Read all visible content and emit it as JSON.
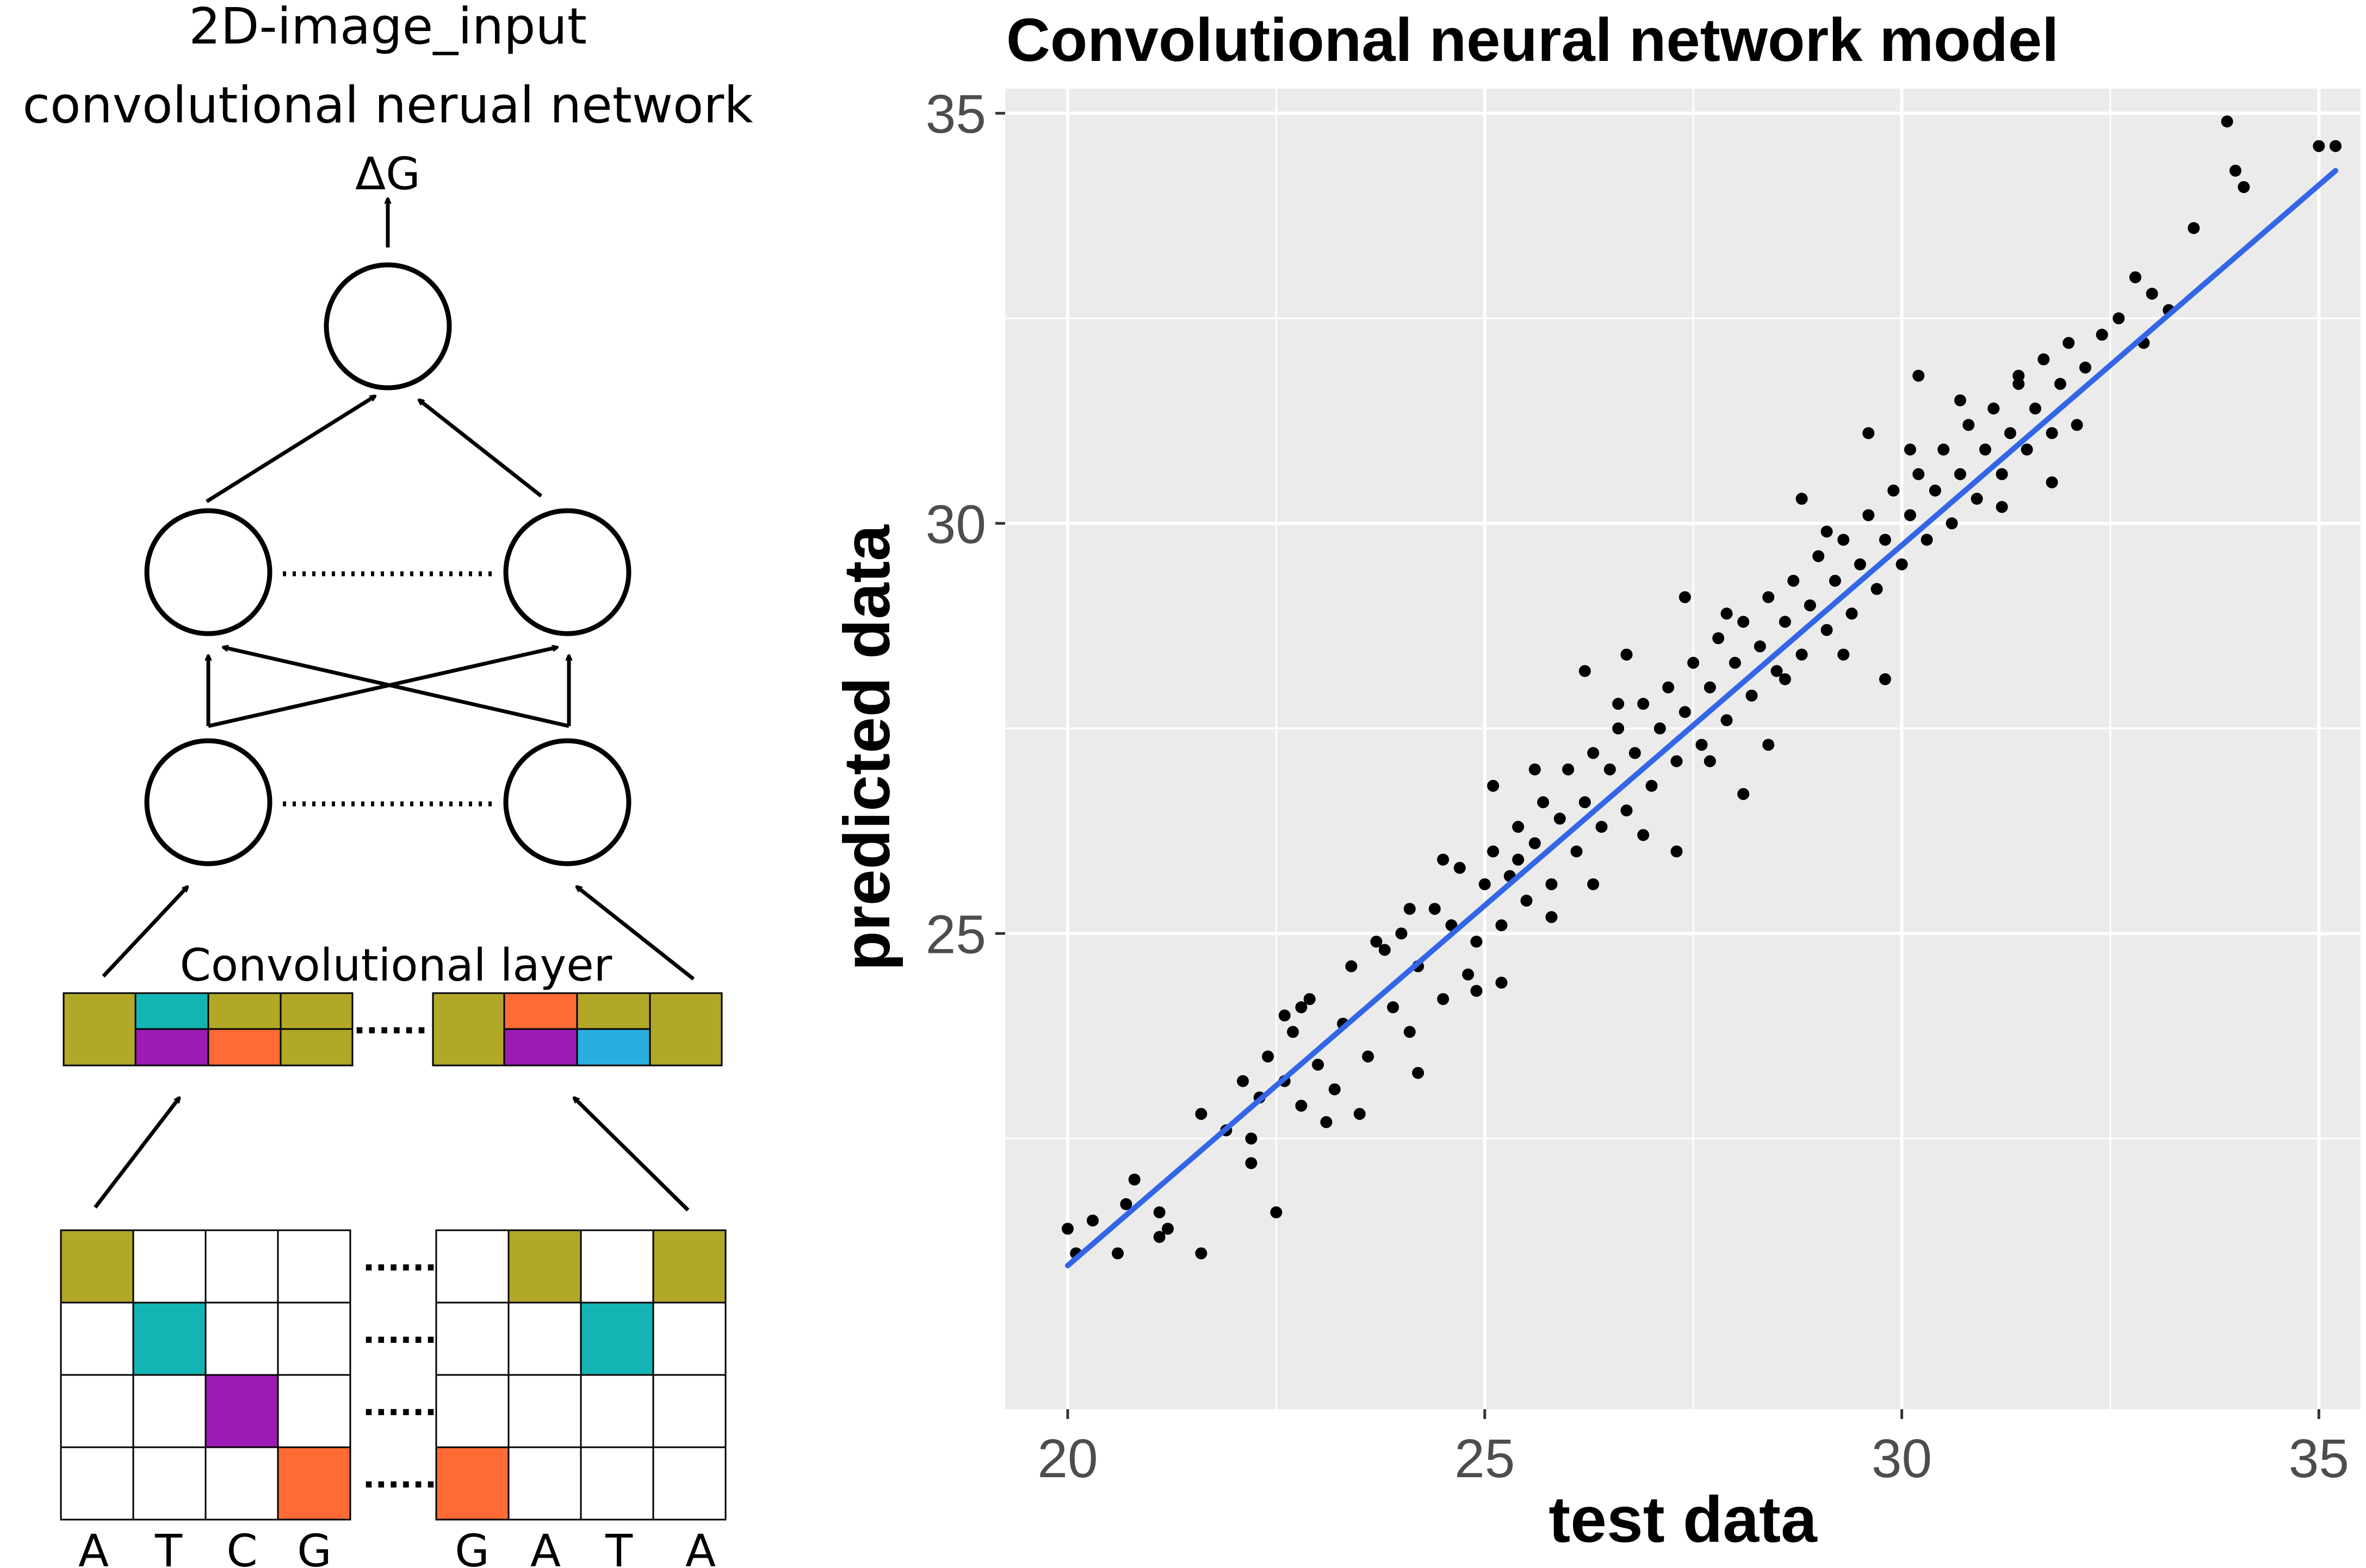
{
  "diagram": {
    "title_line1": "2D-image_input",
    "title_line2": "convolutional nerual network",
    "output_label": "ΔG",
    "conv_layer_label": "Convolutional layer",
    "colors": {
      "olive": "#B0A826",
      "teal": "#14B4B4",
      "purple": "#9B1BB4",
      "orange": "#FF6B35",
      "blue": "#2AAEE0"
    },
    "seq_left": [
      "A",
      "T",
      "C",
      "G"
    ],
    "seq_right": [
      "G",
      "A",
      "T",
      "A"
    ],
    "ellipsis": "......"
  },
  "chart_data": {
    "type": "scatter",
    "title": "Convolutional neural network model",
    "xlabel": "test data",
    "ylabel": "predicted data",
    "xlim": [
      19.25,
      35.5
    ],
    "ylim": [
      19.2,
      35.3
    ],
    "xticks": [
      20,
      25,
      30,
      35
    ],
    "yticks": [
      25,
      30,
      35
    ],
    "grid": true,
    "panel_color": "#EBEBEB",
    "point_color": "#000000",
    "fit_line": {
      "color": "#3366E6",
      "x": [
        20,
        35.2
      ],
      "y": [
        20.95,
        34.3
      ]
    },
    "points": [
      [
        20,
        21.4
      ],
      [
        20.1,
        21.1
      ],
      [
        20.6,
        21.1
      ],
      [
        20.7,
        21.7
      ],
      [
        20.8,
        22
      ],
      [
        21.1,
        21.6
      ],
      [
        21.2,
        21.4
      ],
      [
        21.6,
        21.1
      ],
      [
        21.6,
        22.8
      ],
      [
        21.9,
        22.6
      ],
      [
        22.1,
        23.2
      ],
      [
        22.2,
        22.5
      ],
      [
        22.2,
        22.2
      ],
      [
        22.3,
        23
      ],
      [
        22.4,
        23.5
      ],
      [
        22.5,
        21.6
      ],
      [
        22.6,
        23.2
      ],
      [
        22.7,
        23.8
      ],
      [
        22.8,
        22.9
      ],
      [
        22.9,
        24.2
      ],
      [
        23,
        23.4
      ],
      [
        23.1,
        22.7
      ],
      [
        23.3,
        23.9
      ],
      [
        23.4,
        24.6
      ],
      [
        23.6,
        23.5
      ],
      [
        23.8,
        24.8
      ],
      [
        23.9,
        24.1
      ],
      [
        24,
        25
      ],
      [
        24.1,
        23.8
      ],
      [
        24.2,
        24.6
      ],
      [
        24.4,
        25.3
      ],
      [
        24.5,
        24.2
      ],
      [
        24.6,
        25.1
      ],
      [
        24.7,
        25.8
      ],
      [
        24.8,
        24.5
      ],
      [
        24.9,
        24.9
      ],
      [
        25,
        25.6
      ],
      [
        25.1,
        26
      ],
      [
        25.2,
        25.1
      ],
      [
        25.3,
        25.7
      ],
      [
        25.4,
        26.3
      ],
      [
        25.5,
        25.4
      ],
      [
        25.6,
        26.1
      ],
      [
        25.7,
        26.6
      ],
      [
        25.8,
        25.6
      ],
      [
        25.9,
        26.4
      ],
      [
        26,
        27
      ],
      [
        26.1,
        26
      ],
      [
        26.2,
        26.6
      ],
      [
        26.3,
        27.2
      ],
      [
        26.4,
        26.3
      ],
      [
        26.5,
        27
      ],
      [
        26.6,
        27.5
      ],
      [
        26.7,
        26.5
      ],
      [
        26.8,
        27.2
      ],
      [
        26.9,
        27.8
      ],
      [
        27,
        26.8
      ],
      [
        27.1,
        27.5
      ],
      [
        27.2,
        28
      ],
      [
        27.3,
        27.1
      ],
      [
        27.4,
        27.7
      ],
      [
        27.5,
        28.3
      ],
      [
        27.6,
        27.3
      ],
      [
        27.7,
        28
      ],
      [
        27.8,
        28.6
      ],
      [
        27.9,
        27.6
      ],
      [
        28,
        28.3
      ],
      [
        28.1,
        28.8
      ],
      [
        28.2,
        27.9
      ],
      [
        28.3,
        28.5
      ],
      [
        28.4,
        29.1
      ],
      [
        28.5,
        28.2
      ],
      [
        28.6,
        28.8
      ],
      [
        28.7,
        29.3
      ],
      [
        28.8,
        28.4
      ],
      [
        28.9,
        29
      ],
      [
        29,
        29.6
      ],
      [
        29.1,
        28.7
      ],
      [
        29.2,
        29.3
      ],
      [
        29.3,
        29.8
      ],
      [
        29.4,
        28.9
      ],
      [
        29.5,
        29.5
      ],
      [
        29.6,
        30.1
      ],
      [
        29.7,
        29.2
      ],
      [
        29.8,
        29.8
      ],
      [
        29.9,
        30.4
      ],
      [
        30,
        29.5
      ],
      [
        30.1,
        30.1
      ],
      [
        30.2,
        30.6
      ],
      [
        30.3,
        29.8
      ],
      [
        30.4,
        30.4
      ],
      [
        30.5,
        30.9
      ],
      [
        30.6,
        30
      ],
      [
        30.7,
        30.6
      ],
      [
        30.8,
        31.2
      ],
      [
        30.9,
        30.3
      ],
      [
        31,
        30.9
      ],
      [
        31.1,
        31.4
      ],
      [
        31.2,
        30.6
      ],
      [
        31.3,
        31.1
      ],
      [
        31.4,
        31.7
      ],
      [
        31.5,
        30.9
      ],
      [
        31.6,
        31.4
      ],
      [
        31.7,
        32
      ],
      [
        31.8,
        31.1
      ],
      [
        31.9,
        31.7
      ],
      [
        32,
        32.2
      ],
      [
        32.2,
        31.9
      ],
      [
        32.4,
        32.3
      ],
      [
        32.6,
        32.5
      ],
      [
        32.8,
        33
      ],
      [
        33,
        32.8
      ],
      [
        33.2,
        32.6
      ],
      [
        33.5,
        33.6
      ],
      [
        34.1,
        34.1
      ],
      [
        35,
        34.6
      ],
      [
        35.2,
        34.6
      ],
      [
        33.9,
        34.9
      ],
      [
        34,
        34.3
      ],
      [
        32.9,
        32.2
      ],
      [
        21.1,
        21.3
      ],
      [
        20.3,
        21.5
      ],
      [
        22.8,
        24.1
      ],
      [
        25.1,
        26.8
      ],
      [
        24.5,
        25.9
      ],
      [
        26.2,
        28.2
      ],
      [
        28.1,
        26.7
      ],
      [
        29.8,
        28.1
      ],
      [
        31.2,
        30.2
      ],
      [
        30.2,
        31.8
      ],
      [
        27.3,
        26
      ],
      [
        24.2,
        23.3
      ],
      [
        23.7,
        24.9
      ],
      [
        25.8,
        25.2
      ],
      [
        27.4,
        29.1
      ],
      [
        28.8,
        30.3
      ],
      [
        29.6,
        31.1
      ],
      [
        26.3,
        25.6
      ],
      [
        25.2,
        24.4
      ],
      [
        23.2,
        23.1
      ],
      [
        26.7,
        28.4
      ],
      [
        28.4,
        27.3
      ],
      [
        30.7,
        31.5
      ],
      [
        31.8,
        30.5
      ],
      [
        29.3,
        28.4
      ],
      [
        27.9,
        28.9
      ],
      [
        26.9,
        26.2
      ],
      [
        25.6,
        27
      ],
      [
        24.9,
        24.3
      ],
      [
        24.1,
        25.3
      ],
      [
        23.5,
        22.8
      ],
      [
        22.6,
        24
      ],
      [
        30.1,
        30.9
      ],
      [
        31.4,
        31.8
      ],
      [
        32.1,
        31.2
      ],
      [
        29.1,
        29.9
      ],
      [
        28.6,
        28.1
      ],
      [
        27.7,
        27.1
      ],
      [
        26.6,
        27.8
      ],
      [
        25.4,
        25.9
      ]
    ]
  }
}
